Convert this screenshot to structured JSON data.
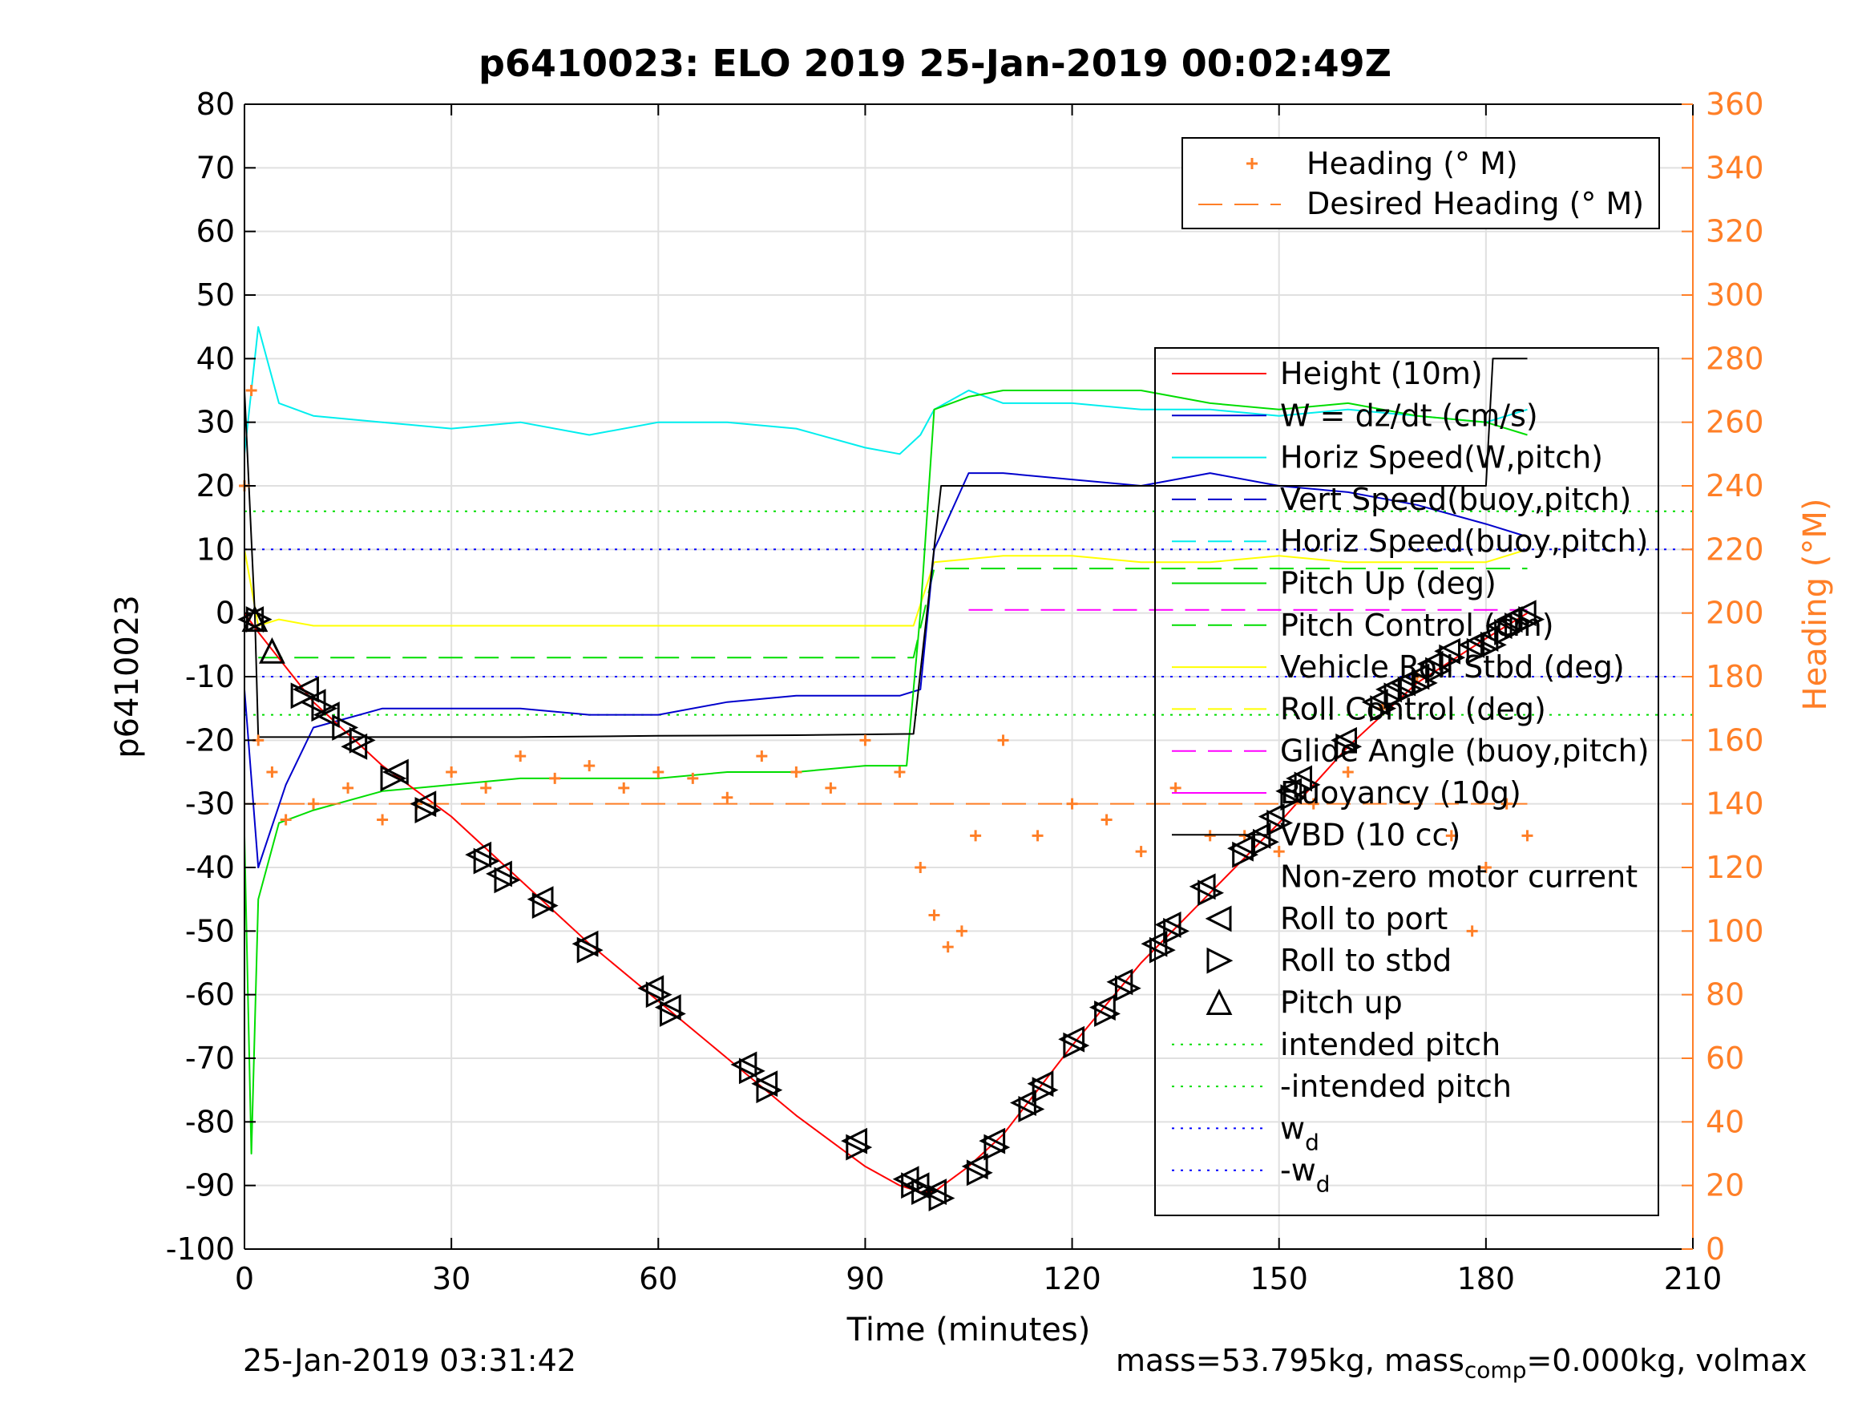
{
  "chart_data": {
    "type": "line",
    "title": "p6410023: ELO 2019 25-Jan-2019 00:02:49Z",
    "xlabel": "Time (minutes)",
    "ylabel": "p6410023",
    "y2label": "Heading (°M)",
    "xlim": [
      0,
      210
    ],
    "ylim": [
      -100,
      80
    ],
    "y2lim": [
      0,
      360
    ],
    "xticks": [
      0,
      30,
      60,
      90,
      120,
      150,
      180,
      210
    ],
    "yticks": [
      -100,
      -90,
      -80,
      -70,
      -60,
      -50,
      -40,
      -30,
      -20,
      -10,
      0,
      10,
      20,
      30,
      40,
      50,
      60,
      70,
      80
    ],
    "y2ticks": [
      0,
      20,
      40,
      60,
      80,
      100,
      120,
      140,
      160,
      180,
      200,
      220,
      240,
      260,
      280,
      300,
      320,
      340,
      360
    ],
    "grid": true,
    "colors": {
      "height": "#ff0000",
      "w": "#0000cc",
      "horiz": "#00eeee",
      "vbd": "#000000",
      "pitch": "#00dd00",
      "roll": "#ffff00",
      "glide": "#ff00ff",
      "heading": "#ff7f27"
    },
    "series": [
      {
        "name": "Height (10m)",
        "x": [
          0,
          2,
          10,
          20,
          30,
          40,
          50,
          60,
          70,
          80,
          90,
          95,
          98,
          100,
          105,
          110,
          120,
          130,
          140,
          150,
          160,
          170,
          180,
          186
        ],
        "values": [
          0,
          -3,
          -14,
          -24,
          -32,
          -42,
          -52,
          -61,
          -70,
          -79,
          -87,
          -90,
          -91,
          -91,
          -87,
          -82,
          -68,
          -55,
          -44,
          -33,
          -21,
          -11,
          -4,
          0
        ]
      },
      {
        "name": "W = dz/dt (cm/s)",
        "x": [
          0,
          2,
          6,
          10,
          20,
          30,
          40,
          50,
          60,
          70,
          80,
          90,
          95,
          98,
          100,
          105,
          110,
          120,
          130,
          140,
          150,
          160,
          170,
          180,
          186
        ],
        "values": [
          -12,
          -40,
          -27,
          -18,
          -15,
          -15,
          -15,
          -16,
          -16,
          -14,
          -13,
          -13,
          -13,
          -12,
          10,
          22,
          22,
          21,
          20,
          22,
          20,
          19,
          17,
          14,
          12
        ]
      },
      {
        "name": "Horiz Speed(W,pitch)",
        "x": [
          0,
          2,
          5,
          10,
          20,
          30,
          40,
          50,
          60,
          70,
          80,
          90,
          95,
          98,
          100,
          105,
          110,
          120,
          130,
          140,
          150,
          160,
          170,
          180,
          186
        ],
        "values": [
          25,
          45,
          33,
          31,
          30,
          29,
          30,
          28,
          30,
          30,
          29,
          26,
          25,
          28,
          32,
          35,
          33,
          33,
          32,
          32,
          31,
          32,
          31,
          30,
          32
        ]
      },
      {
        "name": "Vert Speed(buoy,pitch)",
        "x": [],
        "values": []
      },
      {
        "name": "Horiz Speed(buoy,pitch)",
        "x": [],
        "values": []
      },
      {
        "name": "Pitch Up (deg)",
        "x": [
          0,
          1,
          2,
          5,
          10,
          20,
          30,
          40,
          50,
          60,
          70,
          80,
          90,
          96,
          98,
          100,
          105,
          110,
          120,
          130,
          140,
          150,
          160,
          170,
          180,
          186
        ],
        "values": [
          -35,
          -85,
          -45,
          -33,
          -31,
          -28,
          -27,
          -26,
          -26,
          -26,
          -25,
          -25,
          -24,
          -24,
          0,
          32,
          34,
          35,
          35,
          35,
          33,
          32,
          33,
          31,
          30,
          28
        ]
      },
      {
        "name": "Pitch Control (cm)",
        "x": [
          2,
          10,
          20,
          30,
          40,
          50,
          60,
          70,
          80,
          90,
          97,
          100,
          110,
          120,
          130,
          140,
          150,
          160,
          170,
          180,
          186
        ],
        "values": [
          -7,
          -7,
          -7,
          -7,
          -7,
          -7,
          -7,
          -7,
          -7,
          -7,
          -7,
          7,
          7,
          7,
          7,
          7,
          7,
          7,
          7,
          7,
          7
        ]
      },
      {
        "name": "Vehicle Roll Stbd (deg)",
        "x": [
          0,
          2,
          5,
          10,
          20,
          30,
          40,
          50,
          60,
          70,
          80,
          90,
          97,
          100,
          110,
          120,
          130,
          140,
          150,
          160,
          170,
          180,
          186
        ],
        "values": [
          10,
          -2,
          -1,
          -2,
          -2,
          -2,
          -2,
          -2,
          -2,
          -2,
          -2,
          -2,
          -2,
          8,
          9,
          9,
          8,
          8,
          9,
          8,
          8,
          8,
          10
        ]
      },
      {
        "name": "Roll Control (deg)",
        "x": [],
        "values": []
      },
      {
        "name": "Glide Angle (buoy,pitch)",
        "x": [
          105,
          186
        ],
        "values": [
          0.5,
          0.5
        ]
      },
      {
        "name": "Buoyancy (10g)",
        "x": [],
        "values": []
      },
      {
        "name": "VBD (10 cc)",
        "x": [
          0,
          1.5,
          2,
          20,
          40,
          60,
          80,
          97,
          101,
          104,
          120,
          140,
          160,
          180,
          181,
          186
        ],
        "values": [
          35,
          0,
          -19.5,
          -19.5,
          -19.5,
          -19.3,
          -19.2,
          -19,
          20,
          20,
          20,
          20,
          20,
          20,
          40,
          40
        ]
      },
      {
        "name": "intended pitch",
        "x": [
          0,
          210
        ],
        "values": [
          16,
          16
        ]
      },
      {
        "name": "-intended pitch",
        "x": [
          0,
          210
        ],
        "values": [
          -16,
          -16
        ]
      },
      {
        "name": "w_d",
        "x": [
          0,
          210
        ],
        "values": [
          10,
          10
        ]
      },
      {
        "name": "-w_d",
        "x": [
          0,
          210
        ],
        "values": [
          -10,
          -10
        ]
      }
    ],
    "heading": {
      "name": "Heading (° M)",
      "x": [
        0,
        1,
        2,
        4,
        6,
        10,
        15,
        20,
        25,
        30,
        35,
        40,
        45,
        50,
        55,
        60,
        65,
        70,
        75,
        80,
        85,
        90,
        95,
        98,
        100,
        102,
        104,
        106,
        110,
        115,
        120,
        125,
        130,
        135,
        140,
        145,
        150,
        155,
        160,
        165,
        170,
        175,
        178,
        180,
        183,
        186
      ],
      "values": [
        240,
        270,
        160,
        150,
        135,
        140,
        145,
        135,
        140,
        150,
        145,
        155,
        148,
        152,
        145,
        150,
        148,
        142,
        155,
        150,
        145,
        160,
        150,
        120,
        105,
        95,
        100,
        130,
        160,
        130,
        140,
        135,
        125,
        145,
        130,
        130,
        125,
        140,
        150,
        170,
        180,
        130,
        100,
        120,
        140,
        130
      ]
    },
    "desired_heading": {
      "name": "Desired Heading (° M)",
      "value": 140
    },
    "markers": {
      "roll_to_port": {
        "name": "Roll to port",
        "x": [
          1,
          9,
          10,
          12,
          16,
          22,
          26,
          34,
          37,
          43,
          49.5,
          59,
          61.5,
          72.5,
          75.5,
          88.5,
          96,
          97.5,
          100,
          106,
          108.5,
          113,
          115.5,
          120,
          124.5,
          127,
          132,
          134,
          139,
          144.5,
          147,
          149,
          151.5,
          153,
          159.5,
          164,
          166,
          168,
          170,
          172,
          174.5,
          178,
          180,
          182,
          183.5,
          185.5
        ],
        "values": [
          -1,
          -12,
          -14,
          -16,
          -21,
          -25,
          -30,
          -38,
          -41,
          -45,
          -52,
          -59,
          -62,
          -71,
          -74,
          -83,
          -89,
          -90,
          -91,
          -87,
          -83,
          -77,
          -74,
          -67,
          -62,
          -58,
          -52,
          -49,
          -43,
          -37,
          -35,
          -32,
          -28,
          -26,
          -20,
          -14,
          -12,
          -11,
          -10,
          -8,
          -6,
          -5,
          -4,
          -2,
          -1,
          0
        ]
      },
      "roll_to_stbd": {
        "name": "Roll to stbd",
        "x": [
          2,
          8.5,
          11.5,
          14.5,
          17,
          21.5,
          26.5,
          35,
          38,
          43.5,
          50,
          60,
          62,
          73.5,
          76,
          89,
          97,
          98.5,
          101,
          106.5,
          109,
          114,
          116,
          120.5,
          125,
          128,
          133,
          135,
          140,
          145,
          148,
          150,
          152,
          154,
          160,
          165,
          167,
          169,
          171,
          173,
          175,
          179,
          181,
          183,
          184.5,
          186.5
        ],
        "values": [
          -1,
          -13,
          -15,
          -18,
          -20,
          -26,
          -31,
          -39,
          -42,
          -46,
          -53,
          -60,
          -63,
          -72,
          -75,
          -84,
          -90,
          -91,
          -92,
          -88,
          -84,
          -78,
          -75,
          -68,
          -63,
          -59,
          -53,
          -50,
          -44,
          -38,
          -36,
          -33,
          -29,
          -27,
          -21,
          -15,
          -13,
          -12,
          -11,
          -9,
          -7,
          -6,
          -5,
          -3,
          -2,
          -1
        ]
      },
      "pitch_up": {
        "name": "Pitch up",
        "x": [
          1.5,
          4
        ],
        "values": [
          -1,
          -6
        ]
      }
    },
    "legend_right": [
      "Heading (° M)",
      "Desired Heading (° M)"
    ],
    "legend_left": [
      "Height (10m)",
      "W = dz/dt (cm/s)",
      "Horiz Speed(W,pitch)",
      "Vert Speed(buoy,pitch)",
      "Horiz Speed(buoy,pitch)",
      "Pitch Up (deg)",
      "Pitch Control (cm)",
      "Vehicle Roll Stbd (deg)",
      "Roll Control (deg)",
      "Glide Angle (buoy,pitch)",
      "Buoyancy (10g)",
      "VBD (10 cc)",
      "Non-zero motor current",
      "Roll to port",
      "Roll to stbd",
      "Pitch up",
      "intended pitch",
      "-intended pitch",
      "w",
      "-w"
    ],
    "legend_subscripts": {
      "w": "d",
      "-w": "d"
    }
  },
  "footer": {
    "timestamp": "25-Jan-2019 03:31:42",
    "mass_text": "mass=53.795kg, mass",
    "mass_sub": "comp",
    "mass_tail": "=0.000kg, volmax"
  }
}
